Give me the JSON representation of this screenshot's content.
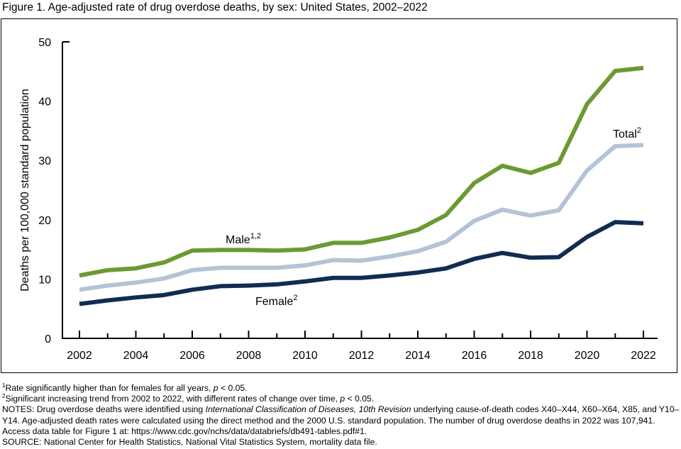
{
  "title": "Figure 1. Age-adjusted rate of drug overdose deaths, by sex: United States, 2002–2022",
  "chart_data": {
    "type": "line",
    "title": "Figure 1. Age-adjusted rate of drug overdose deaths, by sex: United States, 2002–2022",
    "xlabel": "",
    "ylabel": "Deaths per 100,000 standard population",
    "x": [
      2002,
      2003,
      2004,
      2005,
      2006,
      2007,
      2008,
      2009,
      2010,
      2011,
      2012,
      2013,
      2014,
      2015,
      2016,
      2017,
      2018,
      2019,
      2020,
      2021,
      2022
    ],
    "xticks": [
      "2002",
      "2004",
      "2006",
      "2008",
      "2010",
      "2012",
      "2014",
      "2016",
      "2018",
      "2020",
      "2022"
    ],
    "yticks": [
      "0",
      "10",
      "20",
      "30",
      "40",
      "50"
    ],
    "ylim": [
      0,
      50
    ],
    "xlim": [
      2001.4,
      2022.6
    ],
    "grid": false,
    "series": [
      {
        "name": "Male",
        "label": "Male",
        "sup": "1,2",
        "color": "#6b9a32",
        "values": [
          10.6,
          11.5,
          11.8,
          12.8,
          14.8,
          14.9,
          14.9,
          14.8,
          15.0,
          16.1,
          16.1,
          17.0,
          18.3,
          20.8,
          26.2,
          29.1,
          27.9,
          29.6,
          39.5,
          45.1,
          45.6
        ]
      },
      {
        "name": "Total",
        "label": "Total",
        "sup": "2",
        "color": "#b4c3d6",
        "values": [
          8.2,
          8.9,
          9.4,
          10.1,
          11.5,
          11.9,
          11.9,
          11.9,
          12.3,
          13.2,
          13.1,
          13.8,
          14.7,
          16.3,
          19.8,
          21.7,
          20.7,
          21.6,
          28.3,
          32.4,
          32.6
        ]
      },
      {
        "name": "Female",
        "label": "Female",
        "sup": "2",
        "color": "#0f2d52",
        "values": [
          5.8,
          6.4,
          6.9,
          7.3,
          8.2,
          8.8,
          8.9,
          9.1,
          9.6,
          10.2,
          10.2,
          10.6,
          11.1,
          11.8,
          13.4,
          14.4,
          13.6,
          13.7,
          17.1,
          19.6,
          19.4
        ]
      }
    ]
  },
  "notes": {
    "fn1_mark": "1",
    "fn1": "Rate significantly higher than for females for all years, ",
    "fn1_p": "p",
    "fn1_end": " < 0.05.",
    "fn2_mark": "2",
    "fn2": "Significant increasing trend from 2002 to 2022, with different rates of change over time, ",
    "fn2_p": "p",
    "fn2_end": " < 0.05.",
    "notes_a": "NOTES: Drug overdose deaths were identified using ",
    "notes_icd": "International Classification of Diseases, 10th Revision",
    "notes_b": " underlying cause-of-death codes X40–X44, X60–X64, X85, and Y10–Y14. Age-adjusted death rates were calculated using the direct method and the 2000 U.S. standard population. The number of drug overdose deaths in 2022 was 107,941. Access data table for Figure 1 at: https://www.cdc.gov/nchs/data/databriefs/db491-tables.pdf#1.",
    "source": "SOURCE: National Center for Health Statistics, National Vital Statistics System, mortality data file."
  }
}
